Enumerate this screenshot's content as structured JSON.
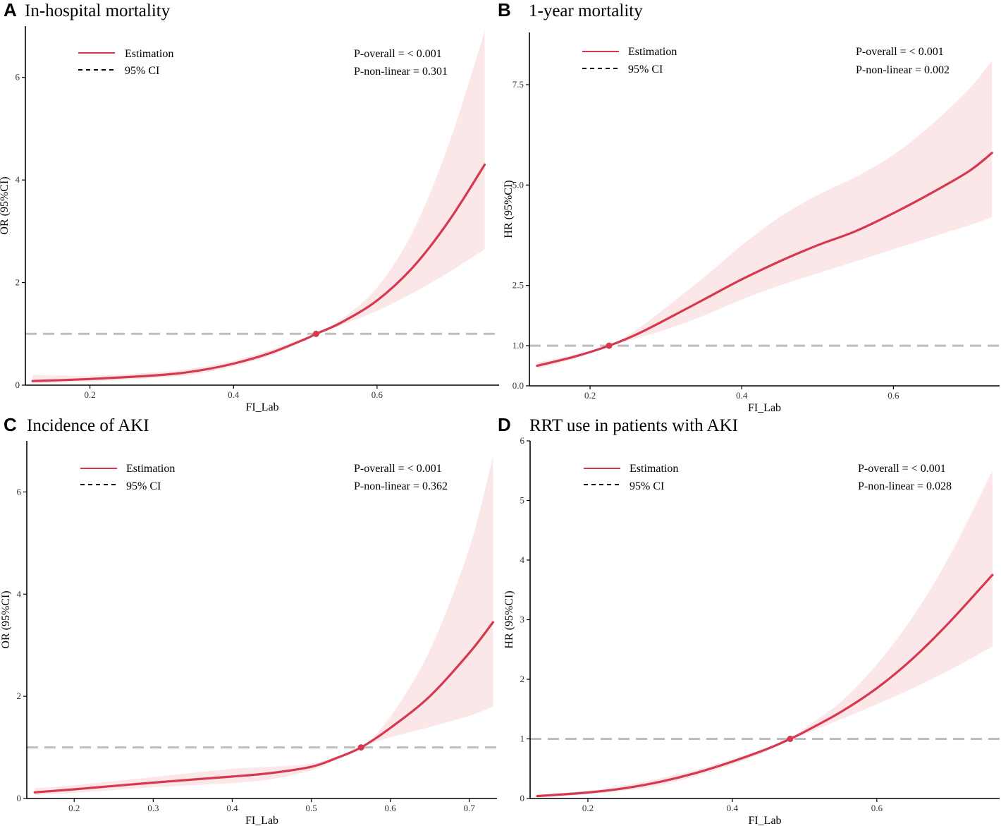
{
  "colors": {
    "estimate": "#d5384f",
    "ci_band": "#fbe6e8",
    "reference": "#bdbdbd",
    "axis": "#000000"
  },
  "chart_data": [
    {
      "type": "line",
      "panel": "A",
      "title": "In-hospital mortality",
      "xlabel": "FI_Lab",
      "ylabel": "OR (95%CI)",
      "xlim": [
        0.11,
        0.77
      ],
      "ylim": [
        0,
        7
      ],
      "xticks": [
        0.2,
        0.4,
        0.6
      ],
      "xtick_labels": [
        "0.2",
        "0.4",
        "0.6"
      ],
      "yticks": [
        0,
        2,
        4,
        6
      ],
      "ytick_labels": [
        "0",
        "2",
        "4",
        "6"
      ],
      "reference_y": 1,
      "reference_point": [
        0.515,
        1
      ],
      "legend": {
        "estimate": "Estimation",
        "ci": "95% CI"
      },
      "p_overall": "P-overall = < 0.001",
      "p_nonlinear": "P-non-linear = 0.301",
      "series": [
        {
          "name": "Estimation",
          "x": [
            0.12,
            0.2,
            0.3,
            0.35,
            0.4,
            0.45,
            0.5,
            0.515,
            0.55,
            0.6,
            0.65,
            0.7,
            0.75
          ],
          "y": [
            0.08,
            0.12,
            0.2,
            0.28,
            0.42,
            0.62,
            0.9,
            1.0,
            1.22,
            1.65,
            2.3,
            3.2,
            4.3
          ]
        },
        {
          "name": "95% CI upper",
          "x": [
            0.12,
            0.2,
            0.3,
            0.35,
            0.4,
            0.45,
            0.5,
            0.515,
            0.55,
            0.6,
            0.65,
            0.7,
            0.75
          ],
          "y": [
            0.2,
            0.18,
            0.26,
            0.34,
            0.48,
            0.68,
            0.93,
            1.0,
            1.28,
            1.9,
            3.0,
            4.7,
            6.9
          ]
        },
        {
          "name": "95% CI lower",
          "x": [
            0.12,
            0.2,
            0.3,
            0.35,
            0.4,
            0.45,
            0.5,
            0.515,
            0.55,
            0.6,
            0.65,
            0.7,
            0.75
          ],
          "y": [
            0.03,
            0.07,
            0.15,
            0.22,
            0.37,
            0.57,
            0.87,
            1.0,
            1.17,
            1.45,
            1.8,
            2.2,
            2.65
          ]
        }
      ]
    },
    {
      "type": "line",
      "panel": "B",
      "title": "1-year mortality",
      "xlabel": "FI_Lab",
      "ylabel": "HR  (95%CI)",
      "xlim": [
        0.12,
        0.74
      ],
      "ylim": [
        0,
        8.8
      ],
      "xticks": [
        0.2,
        0.4,
        0.6
      ],
      "xtick_labels": [
        "0.2",
        "0.4",
        "0.6"
      ],
      "yticks": [
        0,
        1,
        2.5,
        5,
        7.5
      ],
      "ytick_labels": [
        "0.0",
        "1.0",
        "2.5",
        "5.0",
        "7.5"
      ],
      "reference_y": 1,
      "reference_point": [
        0.225,
        1
      ],
      "legend": {
        "estimate": "Estimation",
        "ci": "95% CI"
      },
      "p_overall": "P-overall = < 0.001",
      "p_nonlinear": "P-non-linear = 0.002",
      "series": [
        {
          "name": "Estimation",
          "x": [
            0.13,
            0.18,
            0.225,
            0.26,
            0.3,
            0.35,
            0.4,
            0.45,
            0.5,
            0.55,
            0.6,
            0.65,
            0.7,
            0.73
          ],
          "y": [
            0.5,
            0.73,
            1.0,
            1.27,
            1.65,
            2.15,
            2.65,
            3.1,
            3.5,
            3.85,
            4.3,
            4.8,
            5.35,
            5.8
          ]
        },
        {
          "name": "95% CI upper",
          "x": [
            0.13,
            0.18,
            0.225,
            0.26,
            0.3,
            0.35,
            0.4,
            0.45,
            0.5,
            0.55,
            0.6,
            0.65,
            0.7,
            0.73
          ],
          "y": [
            0.58,
            0.78,
            1.0,
            1.38,
            1.95,
            2.7,
            3.5,
            4.2,
            4.75,
            5.2,
            5.75,
            6.5,
            7.4,
            8.1
          ]
        },
        {
          "name": "95% CI lower",
          "x": [
            0.13,
            0.18,
            0.225,
            0.26,
            0.3,
            0.35,
            0.4,
            0.45,
            0.5,
            0.55,
            0.6,
            0.65,
            0.7,
            0.73
          ],
          "y": [
            0.42,
            0.68,
            1.0,
            1.18,
            1.4,
            1.75,
            2.15,
            2.5,
            2.8,
            3.1,
            3.4,
            3.7,
            4.0,
            4.2
          ]
        }
      ]
    },
    {
      "type": "line",
      "panel": "C",
      "title": "Incidence of AKI",
      "xlabel": "FI_Lab",
      "ylabel": "OR (95%CI)",
      "xlim": [
        0.14,
        0.735
      ],
      "ylim": [
        0,
        7
      ],
      "xticks": [
        0.2,
        0.3,
        0.4,
        0.5,
        0.6,
        0.7
      ],
      "xtick_labels": [
        "0.2",
        "0.3",
        "0.4",
        "0.5",
        "0.6",
        "0.7"
      ],
      "yticks": [
        0,
        2,
        4,
        6
      ],
      "ytick_labels": [
        "0",
        "2",
        "4",
        "6"
      ],
      "reference_y": 1,
      "reference_point": [
        0.563,
        1
      ],
      "legend": {
        "estimate": "Estimation",
        "ci": "95% CI"
      },
      "p_overall": "P-overall = < 0.001",
      "p_nonlinear": "P-non-linear = 0.362",
      "series": [
        {
          "name": "Estimation",
          "x": [
            0.15,
            0.2,
            0.3,
            0.4,
            0.45,
            0.5,
            0.53,
            0.563,
            0.6,
            0.65,
            0.7,
            0.73
          ],
          "y": [
            0.12,
            0.18,
            0.31,
            0.43,
            0.5,
            0.62,
            0.78,
            1.0,
            1.38,
            2.0,
            2.85,
            3.45
          ]
        },
        {
          "name": "95% CI upper",
          "x": [
            0.15,
            0.2,
            0.3,
            0.4,
            0.45,
            0.5,
            0.53,
            0.563,
            0.6,
            0.65,
            0.7,
            0.73
          ],
          "y": [
            0.2,
            0.26,
            0.42,
            0.58,
            0.62,
            0.68,
            0.81,
            1.0,
            1.6,
            2.9,
            4.9,
            6.7
          ]
        },
        {
          "name": "95% CI lower",
          "x": [
            0.15,
            0.2,
            0.3,
            0.4,
            0.45,
            0.5,
            0.53,
            0.563,
            0.6,
            0.65,
            0.7,
            0.73
          ],
          "y": [
            0.07,
            0.11,
            0.22,
            0.3,
            0.38,
            0.55,
            0.75,
            1.0,
            1.2,
            1.4,
            1.62,
            1.8
          ]
        }
      ]
    },
    {
      "type": "line",
      "panel": "D",
      "title": "RRT use in patients with AKI",
      "xlabel": "FI_Lab",
      "ylabel": "HR (95%CI)",
      "xlim": [
        0.12,
        0.77
      ],
      "ylim": [
        0,
        6
      ],
      "xticks": [
        0.2,
        0.4,
        0.6
      ],
      "xtick_labels": [
        "0.2",
        "0.4",
        "0.6"
      ],
      "yticks": [
        0,
        1,
        2,
        3,
        4,
        5,
        6
      ],
      "ytick_labels": [
        "0",
        "1",
        "2",
        "3",
        "4",
        "5",
        "6"
      ],
      "reference_y": 1,
      "reference_point": [
        0.48,
        1
      ],
      "legend": {
        "estimate": "Estimation",
        "ci": "95% CI"
      },
      "p_overall": "P-overall = < 0.001",
      "p_nonlinear": "P-non-linear = 0.028",
      "series": [
        {
          "name": "Estimation",
          "x": [
            0.13,
            0.2,
            0.25,
            0.3,
            0.35,
            0.4,
            0.45,
            0.48,
            0.5,
            0.55,
            0.6,
            0.65,
            0.7,
            0.76
          ],
          "y": [
            0.04,
            0.1,
            0.17,
            0.28,
            0.43,
            0.62,
            0.84,
            1.0,
            1.12,
            1.45,
            1.85,
            2.35,
            2.95,
            3.75
          ]
        },
        {
          "name": "95% CI upper",
          "x": [
            0.13,
            0.2,
            0.25,
            0.3,
            0.35,
            0.4,
            0.45,
            0.48,
            0.5,
            0.55,
            0.6,
            0.65,
            0.7,
            0.76
          ],
          "y": [
            0.06,
            0.13,
            0.22,
            0.34,
            0.48,
            0.66,
            0.86,
            1.0,
            1.18,
            1.62,
            2.25,
            3.05,
            4.05,
            5.5
          ]
        },
        {
          "name": "95% CI lower",
          "x": [
            0.13,
            0.2,
            0.25,
            0.3,
            0.35,
            0.4,
            0.45,
            0.48,
            0.5,
            0.55,
            0.6,
            0.65,
            0.7,
            0.76
          ],
          "y": [
            0.02,
            0.07,
            0.13,
            0.22,
            0.38,
            0.57,
            0.81,
            1.0,
            1.08,
            1.33,
            1.58,
            1.85,
            2.15,
            2.55
          ]
        }
      ]
    }
  ]
}
